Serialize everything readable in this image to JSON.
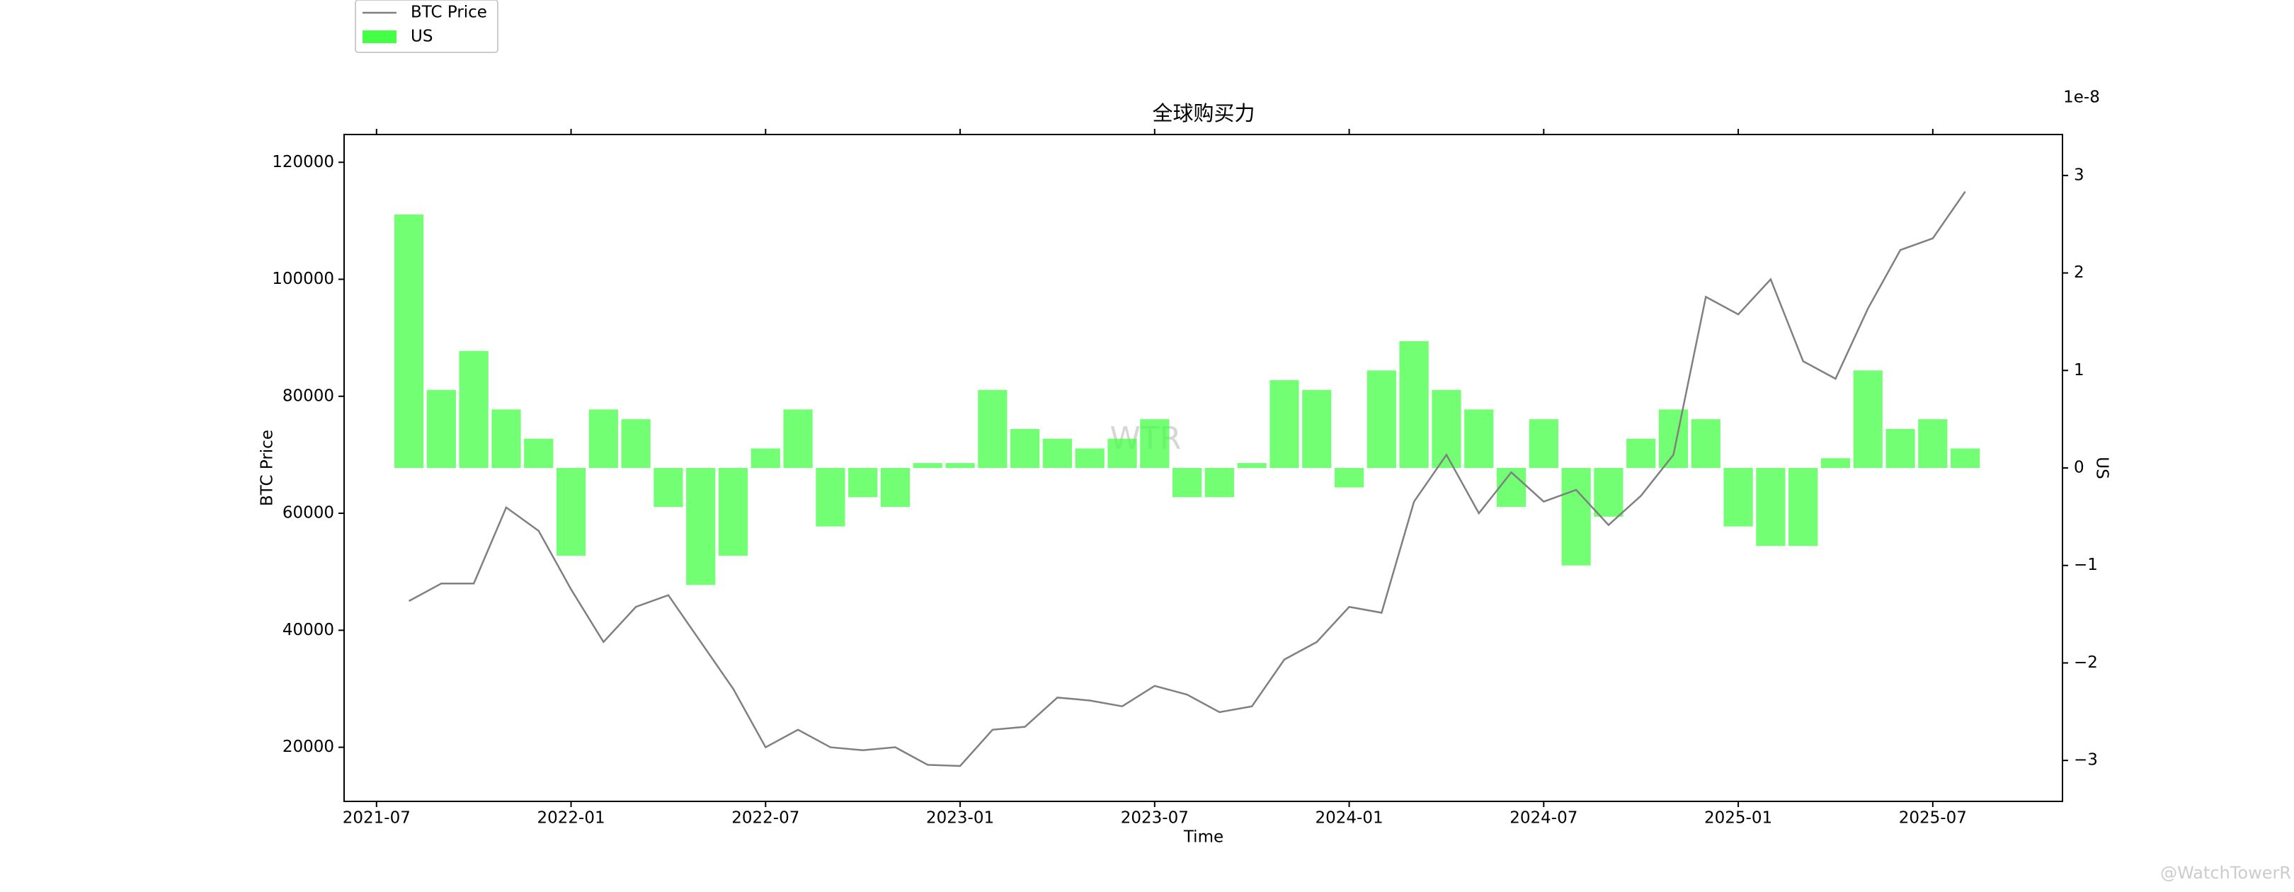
{
  "chart_data": {
    "type": "bar-line",
    "title": "全球购买力",
    "x_label": "Time",
    "y_label": "BTC Price",
    "y2_label": "US",
    "y2_offset_label": "1e-8",
    "annotations": [
      "WTR",
      "@WatchTowerR"
    ],
    "legend": "upper left",
    "x": [
      "2021-08",
      "2021-09",
      "2021-10",
      "2021-11",
      "2021-12",
      "2022-01",
      "2022-02",
      "2022-03",
      "2022-04",
      "2022-05",
      "2022-06",
      "2022-07",
      "2022-08",
      "2022-09",
      "2022-10",
      "2022-11",
      "2022-12",
      "2023-01",
      "2023-02",
      "2023-03",
      "2023-04",
      "2023-05",
      "2023-06",
      "2023-07",
      "2023-08",
      "2023-09",
      "2023-10",
      "2023-11",
      "2023-12",
      "2024-01",
      "2024-02",
      "2024-03",
      "2024-04",
      "2024-05",
      "2024-06",
      "2024-07",
      "2024-08",
      "2024-09",
      "2024-10",
      "2024-11",
      "2024-12",
      "2025-01",
      "2025-02",
      "2025-03",
      "2025-04",
      "2025-05",
      "2025-06",
      "2025-07",
      "2025-08"
    ],
    "xlim": [
      "2021-06",
      "2025-11"
    ],
    "xticks": [
      "2021-07",
      "2022-01",
      "2022-07",
      "2023-01",
      "2023-07",
      "2024-01",
      "2024-07",
      "2025-01",
      "2025-07"
    ],
    "ylim": [
      10750,
      124750
    ],
    "yticks": [
      20000,
      40000,
      60000,
      80000,
      100000,
      120000
    ],
    "y2lim": [
      -3.42,
      3.42
    ],
    "y2ticks": [
      {
        "value": -3,
        "label": "−3"
      },
      {
        "value": -2,
        "label": "−2"
      },
      {
        "value": -1,
        "label": "−1"
      },
      0,
      1,
      2,
      3
    ],
    "series": [
      {
        "name": "BTC Price",
        "color": "#808080",
        "kind": "line",
        "values": [
          45000,
          48000,
          48000,
          61000,
          57000,
          47000,
          38000,
          44000,
          46000,
          38000,
          30000,
          20000,
          23000,
          20000,
          19500,
          20000,
          17000,
          16800,
          23000,
          23500,
          28500,
          28000,
          27000,
          30500,
          29000,
          26000,
          27000,
          35000,
          38000,
          44000,
          43000,
          62000,
          70000,
          60000,
          67000,
          62000,
          64000,
          58000,
          63000,
          70000,
          97000,
          94000,
          100000,
          86000,
          83000,
          95000,
          105000,
          107000,
          115000
        ]
      },
      {
        "name": "US",
        "color": "#44ff44",
        "kind": "bar",
        "axis": "y2",
        "values": [
          2.6,
          0.8,
          1.2,
          0.6,
          0.3,
          -0.9,
          0.6,
          0.5,
          -0.4,
          -1.2,
          -0.9,
          0.2,
          0.6,
          -0.6,
          -0.3,
          -0.4,
          0.05,
          0.05,
          0.8,
          0.4,
          0.3,
          0.2,
          0.3,
          0.5,
          -0.3,
          -0.3,
          0.05,
          0.9,
          0.8,
          -0.2,
          1.0,
          1.3,
          0.8,
          0.6,
          -0.4,
          0.5,
          -1.0,
          -0.5,
          0.3,
          0.6,
          0.5,
          -0.6,
          -0.8,
          -0.8,
          0.1,
          1.0,
          0.4,
          0.5,
          0.2
        ]
      }
    ]
  }
}
